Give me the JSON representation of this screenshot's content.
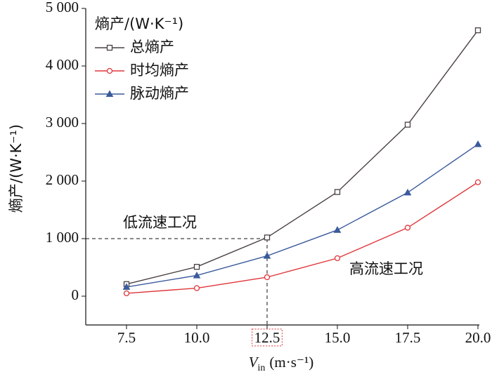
{
  "chart_data": {
    "type": "line",
    "y_label": "熵产/(W·K⁻¹)",
    "x_label": {
      "symbol": "V",
      "subscript": "in",
      "unit": "(m·s⁻¹)"
    },
    "legend_title": "熵产/(W·K⁻¹)",
    "x": [
      7.5,
      10,
      12.5,
      15,
      17.5,
      20
    ],
    "series": [
      {
        "name": "总熵产",
        "color": "#4a4141",
        "marker": "square",
        "values": [
          210,
          510,
          1020,
          1810,
          2980,
          4620
        ]
      },
      {
        "name": "时均熵产",
        "color": "#e0363a",
        "marker": "circle",
        "values": [
          50,
          140,
          330,
          660,
          1190,
          1980
        ]
      },
      {
        "name": "脉动熵产",
        "color": "#3a5a9c",
        "marker": "triangle",
        "values": [
          160,
          360,
          700,
          1150,
          1800,
          2640
        ]
      }
    ],
    "xlim": [
      6.05,
      20.05
    ],
    "ylim": [
      -500,
      5000
    ],
    "xticks": [
      7.5,
      {
        "value": 10,
        "label": "10.0"
      },
      12.5,
      {
        "value": 15,
        "label": "15.0"
      },
      17.5,
      {
        "value": 20,
        "label": "20.0"
      }
    ],
    "yticks": [
      0,
      {
        "value": 1000,
        "label": "1 000"
      },
      {
        "value": 2000,
        "label": "2 000"
      },
      {
        "value": 3000,
        "label": "3 000"
      },
      {
        "value": 4000,
        "label": "4 000"
      },
      {
        "value": 5000,
        "label": "5 000"
      }
    ],
    "reference_point": {
      "x": 12.5,
      "y": 1000
    },
    "annotations": [
      "低流速工况",
      "高流速工况"
    ],
    "legend": "upper-left"
  }
}
